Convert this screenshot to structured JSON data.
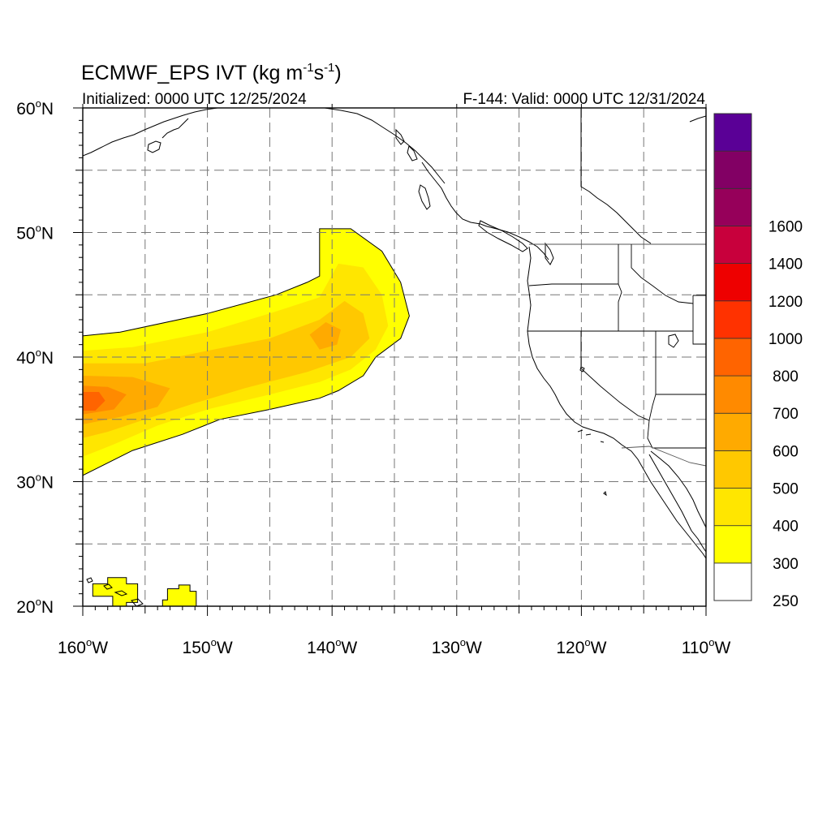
{
  "title": {
    "model": "ECMWF_EPS",
    "variable": "IVT",
    "units_open": "(kg m",
    "units_exp1": "-1",
    "units_mid": "s",
    "units_exp2": "-1",
    "units_close": ")"
  },
  "initialized": "Initialized: 0000 UTC 12/25/2024",
  "valid": "F-144: Valid: 0000 UTC 12/31/2024",
  "map": {
    "lon_range": [
      -160,
      -110
    ],
    "lat_range": [
      20,
      60
    ],
    "lon_ticks": [
      {
        "value": -160,
        "num": "160",
        "hemi": "W"
      },
      {
        "value": -150,
        "num": "150",
        "hemi": "W"
      },
      {
        "value": -140,
        "num": "140",
        "hemi": "W"
      },
      {
        "value": -130,
        "num": "130",
        "hemi": "W"
      },
      {
        "value": -120,
        "num": "120",
        "hemi": "W"
      },
      {
        "value": -110,
        "num": "110",
        "hemi": "W"
      }
    ],
    "lat_ticks": [
      {
        "value": 20,
        "num": "20",
        "hemi": "N"
      },
      {
        "value": 30,
        "num": "30",
        "hemi": "N"
      },
      {
        "value": 40,
        "num": "40",
        "hemi": "N"
      },
      {
        "value": 50,
        "num": "50",
        "hemi": "N"
      },
      {
        "value": 60,
        "num": "60",
        "hemi": "N"
      }
    ],
    "grid": "dashed every 5 degrees"
  },
  "colorbar": {
    "levels": [
      {
        "color": "#ffffff",
        "label": "250"
      },
      {
        "color": "#ffff00",
        "label": "300"
      },
      {
        "color": "#ffe600",
        "label": "400"
      },
      {
        "color": "#ffc800",
        "label": "500"
      },
      {
        "color": "#ffaa00",
        "label": "600"
      },
      {
        "color": "#ff8a00",
        "label": "700"
      },
      {
        "color": "#ff6400",
        "label": "800"
      },
      {
        "color": "#ff3200",
        "label": "1000"
      },
      {
        "color": "#ee0000",
        "label": "1200"
      },
      {
        "color": "#c8003c",
        "label": "1400"
      },
      {
        "color": "#96005a",
        "label": "1600"
      },
      {
        "color": "#820064",
        "label": ""
      },
      {
        "color": "#5a0096",
        "label": ""
      }
    ]
  },
  "ivt_field": {
    "description_units": "kg m-1 s-1",
    "color_index_note": "indices refer to colorbar.levels",
    "main_plume": [
      {
        "level": 1,
        "lon_lat": [
          [
            -160,
            41.7
          ],
          [
            -157,
            42
          ],
          [
            -150,
            43.5
          ],
          [
            -144.5,
            45
          ],
          [
            -142,
            46
          ],
          [
            -141,
            46.5
          ],
          [
            -141,
            50.3
          ],
          [
            -138.5,
            50.3
          ],
          [
            -136,
            48.5
          ],
          [
            -134.5,
            46
          ],
          [
            -133.8,
            43.3
          ],
          [
            -134.5,
            41.5
          ],
          [
            -136.5,
            40
          ],
          [
            -137.5,
            38.5
          ],
          [
            -139.5,
            37.3
          ],
          [
            -141,
            36.7
          ],
          [
            -145,
            35.8
          ],
          [
            -149,
            35
          ],
          [
            -152,
            33.8
          ],
          [
            -156,
            32.5
          ],
          [
            -160,
            30.5
          ]
        ]
      },
      {
        "level": 2,
        "lon_lat": [
          [
            -160,
            40.5
          ],
          [
            -156,
            40.8
          ],
          [
            -150,
            42
          ],
          [
            -145,
            43.5
          ],
          [
            -141,
            44.8
          ],
          [
            -139.5,
            47.5
          ],
          [
            -137.5,
            47.2
          ],
          [
            -136,
            45
          ],
          [
            -135.5,
            42.5
          ],
          [
            -136.5,
            40.6
          ],
          [
            -138.5,
            39
          ],
          [
            -141,
            38
          ],
          [
            -145,
            37
          ],
          [
            -150,
            35.8
          ],
          [
            -154,
            34.5
          ],
          [
            -157.5,
            33
          ],
          [
            -160,
            32
          ]
        ]
      },
      {
        "level": 3,
        "lon_lat": [
          [
            -160,
            39.5
          ],
          [
            -155,
            39.5
          ],
          [
            -150,
            40.5
          ],
          [
            -145,
            41.5
          ],
          [
            -141,
            43
          ],
          [
            -139,
            44.5
          ],
          [
            -137.5,
            43.5
          ],
          [
            -137,
            41.5
          ],
          [
            -138.5,
            40
          ],
          [
            -142,
            38.8
          ],
          [
            -147,
            37.5
          ],
          [
            -151,
            36.3
          ],
          [
            -155,
            35
          ],
          [
            -158,
            34
          ],
          [
            -160,
            33.5
          ]
        ]
      },
      {
        "level": 4,
        "lon_lat": [
          [
            -160,
            38.5
          ],
          [
            -156,
            38.4
          ],
          [
            -153,
            37.5
          ],
          [
            -154,
            36
          ],
          [
            -157,
            35.2
          ],
          [
            -160,
            34.6
          ]
        ]
      },
      {
        "level": 4,
        "lon_lat": [
          [
            -141.8,
            41.8
          ],
          [
            -140.5,
            42.8
          ],
          [
            -139.3,
            42.2
          ],
          [
            -139.6,
            41
          ],
          [
            -141,
            40.6
          ]
        ]
      },
      {
        "level": 5,
        "lon_lat": [
          [
            -160,
            37.7
          ],
          [
            -158,
            37.6
          ],
          [
            -156.5,
            37
          ],
          [
            -157.5,
            35.8
          ],
          [
            -160,
            35.4
          ]
        ]
      },
      {
        "level": 6,
        "lon_lat": [
          [
            -160,
            37.2
          ],
          [
            -158.7,
            37.2
          ],
          [
            -158.2,
            36.5
          ],
          [
            -159,
            35.7
          ],
          [
            -160,
            35.7
          ]
        ]
      }
    ],
    "hawaii_patches": [
      {
        "level": 1,
        "lon_lat": [
          [
            -159.2,
            21.8
          ],
          [
            -158,
            21.8
          ],
          [
            -158,
            22.3
          ],
          [
            -156.5,
            22.3
          ],
          [
            -156.5,
            21.8
          ],
          [
            -155.6,
            21.8
          ],
          [
            -155.6,
            20.3
          ],
          [
            -156.5,
            20.3
          ],
          [
            -156.5,
            19.9
          ],
          [
            -157.6,
            19.9
          ],
          [
            -157.6,
            20.8
          ],
          [
            -159.2,
            20.8
          ]
        ]
      },
      {
        "level": 1,
        "lon_lat": [
          [
            -153.6,
            19.9
          ],
          [
            -153.6,
            20.5
          ],
          [
            -153.2,
            20.5
          ],
          [
            -153.2,
            21.4
          ],
          [
            -152.3,
            21.4
          ],
          [
            -152.3,
            21.7
          ],
          [
            -151.4,
            21.7
          ],
          [
            -151.4,
            21.2
          ],
          [
            -150.9,
            21.2
          ],
          [
            -150.9,
            19.9
          ]
        ]
      }
    ]
  }
}
